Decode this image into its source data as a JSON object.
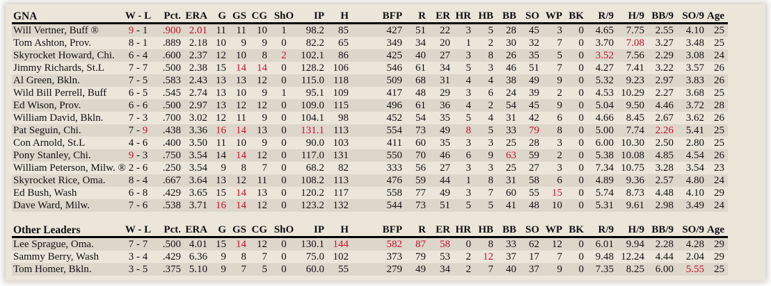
{
  "colors": {
    "highlight": "#c8102e",
    "panel_bg": "#ebe5da",
    "row_alt_bg": "#ddd6cb"
  },
  "columns": [
    "W - L",
    "Pct.",
    "ERA",
    "G",
    "GS",
    "CG",
    "ShO",
    "IP",
    "H",
    "BFP",
    "R",
    "ER",
    "HR",
    "HB",
    "BB",
    "SO",
    "WP",
    "BK",
    "R/9",
    "H/9",
    "BB/9",
    "SO/9",
    "Age"
  ],
  "tables": [
    {
      "title": "GNA",
      "rows": [
        {
          "name": "Will Vertner, Buff  ®",
          "W": "9",
          "L": "1",
          "Pct": ".900",
          "ERA": "2.01",
          "G": "11",
          "GS": "11",
          "CG": "10",
          "ShO": "1",
          "IP": "98.2",
          "H": "85",
          "BFP": "427",
          "R": "51",
          "ER": "22",
          "HR": "3",
          "HB": "5",
          "BB": "28",
          "SO": "45",
          "WP": "3",
          "BK": "0",
          "R9": "4.65",
          "H9": "7.75",
          "BB9": "2.55",
          "SO9": "4.10",
          "Age": "25",
          "hl": [
            "W",
            "Pct",
            "ERA"
          ]
        },
        {
          "name": "Tom Ashton, Prov.",
          "W": "8",
          "L": "1",
          "Pct": ".889",
          "ERA": "2.18",
          "G": "10",
          "GS": "9",
          "CG": "9",
          "ShO": "0",
          "IP": "82.2",
          "H": "65",
          "BFP": "349",
          "R": "34",
          "ER": "20",
          "HR": "1",
          "HB": "2",
          "BB": "30",
          "SO": "32",
          "WP": "7",
          "BK": "0",
          "R9": "3.70",
          "H9": "7.08",
          "BB9": "3.27",
          "SO9": "3.48",
          "Age": "25",
          "hl": [
            "H9"
          ]
        },
        {
          "name": "Skyrocket Howard, Chi.",
          "W": "6",
          "L": "4",
          "Pct": ".600",
          "ERA": "2.37",
          "G": "12",
          "GS": "10",
          "CG": "8",
          "ShO": "2",
          "IP": "102.1",
          "H": "86",
          "BFP": "425",
          "R": "40",
          "ER": "27",
          "HR": "3",
          "HB": "8",
          "BB": "26",
          "SO": "35",
          "WP": "5",
          "BK": "0",
          "R9": "3.52",
          "H9": "7.56",
          "BB9": "2.29",
          "SO9": "3.08",
          "Age": "24",
          "hl": [
            "ShO",
            "R9"
          ]
        },
        {
          "name": "Jimmy Richards, St.L",
          "W": "7",
          "L": "7",
          "Pct": ".500",
          "ERA": "2.38",
          "G": "15",
          "GS": "14",
          "CG": "14",
          "ShO": "0",
          "IP": "128.2",
          "H": "106",
          "BFP": "546",
          "R": "61",
          "ER": "34",
          "HR": "5",
          "HB": "3",
          "BB": "46",
          "SO": "51",
          "WP": "7",
          "BK": "0",
          "R9": "4.27",
          "H9": "7.41",
          "BB9": "3.22",
          "SO9": "3.57",
          "Age": "26",
          "hl": [
            "GS",
            "CG"
          ]
        },
        {
          "name": "Al Green, Bkln.",
          "W": "7",
          "L": "5",
          "Pct": ".583",
          "ERA": "2.43",
          "G": "13",
          "GS": "13",
          "CG": "12",
          "ShO": "0",
          "IP": "115.0",
          "H": "118",
          "BFP": "509",
          "R": "68",
          "ER": "31",
          "HR": "4",
          "HB": "4",
          "BB": "38",
          "SO": "49",
          "WP": "9",
          "BK": "0",
          "R9": "5.32",
          "H9": "9.23",
          "BB9": "2.97",
          "SO9": "3.83",
          "Age": "26",
          "hl": []
        },
        {
          "name": "Wild Bill Perrell, Buff",
          "W": "6",
          "L": "5",
          "Pct": ".545",
          "ERA": "2.74",
          "G": "13",
          "GS": "10",
          "CG": "9",
          "ShO": "1",
          "IP": "95.1",
          "H": "109",
          "BFP": "417",
          "R": "48",
          "ER": "29",
          "HR": "3",
          "HB": "6",
          "BB": "24",
          "SO": "39",
          "WP": "2",
          "BK": "0",
          "R9": "4.53",
          "H9": "10.29",
          "BB9": "2.27",
          "SO9": "3.68",
          "Age": "25",
          "hl": []
        },
        {
          "name": "Ed Wison, Prov.",
          "W": "6",
          "L": "6",
          "Pct": ".500",
          "ERA": "2.97",
          "G": "13",
          "GS": "12",
          "CG": "12",
          "ShO": "0",
          "IP": "109.0",
          "H": "115",
          "BFP": "496",
          "R": "61",
          "ER": "36",
          "HR": "4",
          "HB": "2",
          "BB": "54",
          "SO": "45",
          "WP": "9",
          "BK": "0",
          "R9": "5.04",
          "H9": "9.50",
          "BB9": "4.46",
          "SO9": "3.72",
          "Age": "28",
          "hl": []
        },
        {
          "name": "William David, Bkln.",
          "W": "7",
          "L": "3",
          "Pct": ".700",
          "ERA": "3.02",
          "G": "12",
          "GS": "11",
          "CG": "9",
          "ShO": "0",
          "IP": "104.1",
          "H": "98",
          "BFP": "452",
          "R": "54",
          "ER": "35",
          "HR": "5",
          "HB": "4",
          "BB": "31",
          "SO": "42",
          "WP": "6",
          "BK": "0",
          "R9": "4.66",
          "H9": "8.45",
          "BB9": "2.67",
          "SO9": "3.62",
          "Age": "26",
          "hl": []
        },
        {
          "name": "Pat Seguin, Chi.",
          "W": "7",
          "L": "9",
          "Pct": ".438",
          "ERA": "3.36",
          "G": "16",
          "GS": "14",
          "CG": "13",
          "ShO": "0",
          "IP": "131.1",
          "H": "113",
          "BFP": "554",
          "R": "73",
          "ER": "49",
          "HR": "8",
          "HB": "5",
          "BB": "33",
          "SO": "79",
          "WP": "8",
          "BK": "0",
          "R9": "5.00",
          "H9": "7.74",
          "BB9": "2.26",
          "SO9": "5.41",
          "Age": "25",
          "hl": [
            "L",
            "G",
            "GS",
            "IP",
            "HR",
            "SO",
            "BB9"
          ]
        },
        {
          "name": "Con Arnold, St.L",
          "W": "4",
          "L": "6",
          "Pct": ".400",
          "ERA": "3.50",
          "G": "11",
          "GS": "10",
          "CG": "9",
          "ShO": "0",
          "IP": "90.0",
          "H": "103",
          "BFP": "411",
          "R": "60",
          "ER": "35",
          "HR": "3",
          "HB": "3",
          "BB": "25",
          "SO": "28",
          "WP": "3",
          "BK": "0",
          "R9": "6.00",
          "H9": "10.30",
          "BB9": "2.50",
          "SO9": "2.80",
          "Age": "25",
          "hl": []
        },
        {
          "name": "Pony Stanley, Chi.",
          "W": "9",
          "L": "3",
          "Pct": ".750",
          "ERA": "3.54",
          "G": "14",
          "GS": "14",
          "CG": "12",
          "ShO": "0",
          "IP": "117.0",
          "H": "131",
          "BFP": "550",
          "R": "70",
          "ER": "46",
          "HR": "6",
          "HB": "9",
          "BB": "63",
          "SO": "59",
          "WP": "2",
          "BK": "0",
          "R9": "5.38",
          "H9": "10.08",
          "BB9": "4.85",
          "SO9": "4.54",
          "Age": "26",
          "hl": [
            "W",
            "GS",
            "BB"
          ]
        },
        {
          "name": "William Peterson, Milw.  ®",
          "W": "2",
          "L": "6",
          "Pct": ".250",
          "ERA": "3.54",
          "G": "9",
          "GS": "8",
          "CG": "7",
          "ShO": "0",
          "IP": "68.2",
          "H": "82",
          "BFP": "333",
          "R": "56",
          "ER": "27",
          "HR": "3",
          "HB": "3",
          "BB": "25",
          "SO": "27",
          "WP": "3",
          "BK": "0",
          "R9": "7.34",
          "H9": "10.75",
          "BB9": "3.28",
          "SO9": "3.54",
          "Age": "23",
          "hl": []
        },
        {
          "name": "Skyrocket Rice, Oma.",
          "W": "8",
          "L": "4",
          "Pct": ".667",
          "ERA": "3.64",
          "G": "13",
          "GS": "12",
          "CG": "11",
          "ShO": "0",
          "IP": "108.2",
          "H": "113",
          "BFP": "476",
          "R": "59",
          "ER": "44",
          "HR": "1",
          "HB": "8",
          "BB": "31",
          "SO": "58",
          "WP": "6",
          "BK": "0",
          "R9": "4.89",
          "H9": "9.36",
          "BB9": "2.57",
          "SO9": "4.80",
          "Age": "24",
          "hl": []
        },
        {
          "name": "Ed Bush, Wash",
          "W": "6",
          "L": "8",
          "Pct": ".429",
          "ERA": "3.65",
          "G": "15",
          "GS": "14",
          "CG": "13",
          "ShO": "0",
          "IP": "120.2",
          "H": "117",
          "BFP": "558",
          "R": "77",
          "ER": "49",
          "HR": "3",
          "HB": "7",
          "BB": "60",
          "SO": "55",
          "WP": "15",
          "BK": "0",
          "R9": "5.74",
          "H9": "8.73",
          "BB9": "4.48",
          "SO9": "4.10",
          "Age": "29",
          "hl": [
            "GS",
            "WP"
          ]
        },
        {
          "name": "Dave Ward, Milw.",
          "W": "7",
          "L": "6",
          "Pct": ".538",
          "ERA": "3.71",
          "G": "16",
          "GS": "14",
          "CG": "12",
          "ShO": "0",
          "IP": "123.2",
          "H": "132",
          "BFP": "544",
          "R": "73",
          "ER": "51",
          "HR": "5",
          "HB": "5",
          "BB": "41",
          "SO": "48",
          "WP": "10",
          "BK": "0",
          "R9": "5.31",
          "H9": "9.61",
          "BB9": "2.98",
          "SO9": "3.49",
          "Age": "24",
          "hl": [
            "G",
            "GS"
          ]
        }
      ]
    },
    {
      "title": "Other Leaders",
      "rows": [
        {
          "name": "Lee Sprague, Oma.",
          "W": "7",
          "L": "7",
          "Pct": ".500",
          "ERA": "4.01",
          "G": "15",
          "GS": "14",
          "CG": "12",
          "ShO": "0",
          "IP": "130.1",
          "H": "144",
          "BFP": "582",
          "R": "87",
          "ER": "58",
          "HR": "0",
          "HB": "8",
          "BB": "33",
          "SO": "62",
          "WP": "12",
          "BK": "0",
          "R9": "6.01",
          "H9": "9.94",
          "BB9": "2.28",
          "SO9": "4.28",
          "Age": "29",
          "hl": [
            "GS",
            "H",
            "BFP",
            "R",
            "ER"
          ]
        },
        {
          "name": "Sammy Berry, Wash",
          "W": "3",
          "L": "4",
          "Pct": ".429",
          "ERA": "6.36",
          "G": "9",
          "GS": "8",
          "CG": "7",
          "ShO": "0",
          "IP": "75.0",
          "H": "102",
          "BFP": "373",
          "R": "79",
          "ER": "53",
          "HR": "2",
          "HB": "12",
          "BB": "37",
          "SO": "17",
          "WP": "7",
          "BK": "0",
          "R9": "9.48",
          "H9": "12.24",
          "BB9": "4.44",
          "SO9": "2.04",
          "Age": "29",
          "hl": [
            "HB"
          ]
        },
        {
          "name": "Tom Homer, Bkln.",
          "W": "3",
          "L": "5",
          "Pct": ".375",
          "ERA": "5.10",
          "G": "9",
          "GS": "7",
          "CG": "5",
          "ShO": "0",
          "IP": "60.0",
          "H": "55",
          "BFP": "279",
          "R": "49",
          "ER": "34",
          "HR": "2",
          "HB": "7",
          "BB": "40",
          "SO": "37",
          "WP": "9",
          "BK": "0",
          "R9": "7.35",
          "H9": "8.25",
          "BB9": "6.00",
          "SO9": "5.55",
          "Age": "25",
          "hl": [
            "SO9"
          ]
        }
      ]
    }
  ]
}
